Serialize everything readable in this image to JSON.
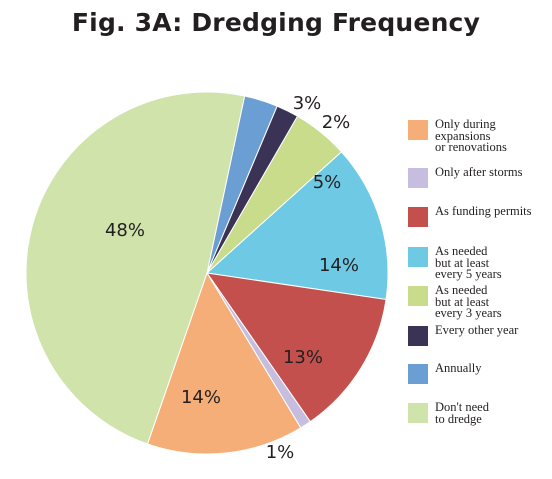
{
  "title": "Fig. 3A: Dredging Frequency",
  "chart_data": {
    "type": "pie",
    "title": "Fig. 3A: Dredging Frequency",
    "start_angle_deg": 282,
    "direction": "clockwise",
    "slices": [
      {
        "label": "Annually",
        "value": 3,
        "display": "3%",
        "color": "#6b9fd4"
      },
      {
        "label": "Every other year",
        "value": 2,
        "display": "2%",
        "color": "#3b3355"
      },
      {
        "label": "As needed\nbut at least\nevery 3 years",
        "value": 5,
        "display": "5%",
        "color": "#c8dc8c"
      },
      {
        "label": "As needed\nbut at least\nevery 5 years",
        "value": 14,
        "display": "14%",
        "color": "#6ecae4"
      },
      {
        "label": "As funding permits",
        "value": 13,
        "display": "13%",
        "color": "#c3504c"
      },
      {
        "label": "Only after storms",
        "value": 1,
        "display": "1%",
        "color": "#c7bedf"
      },
      {
        "label": "Only during\nexpansions\nor renovations",
        "value": 14,
        "display": "14%",
        "color": "#f6ae78"
      },
      {
        "label": "Don't need\nto dredge",
        "value": 48,
        "display": "48%",
        "color": "#cfe3ab"
      }
    ],
    "legend": {
      "position": "right",
      "order": [
        "Only during\nexpansions\nor renovations",
        "Only after storms",
        "As funding permits",
        "As needed\nbut at least\nevery 5 years",
        "As needed\nbut at least\nevery 3 years",
        "Every other year",
        "Annually",
        "Don't need\nto dredge"
      ]
    }
  }
}
